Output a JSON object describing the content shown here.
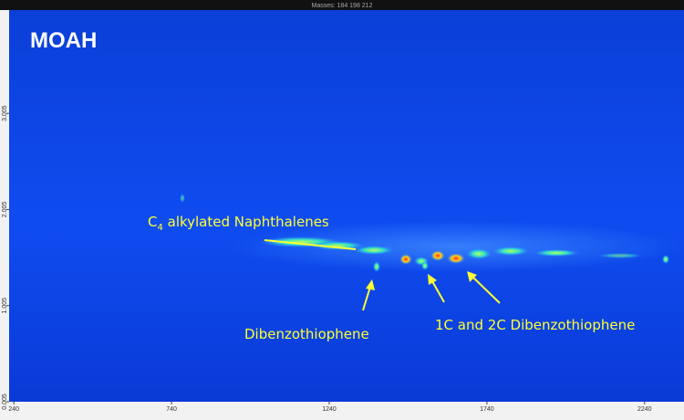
{
  "chart_data": {
    "type": "image",
    "title": "Masses: 184 198 212",
    "label": "MOAH",
    "xlim": [
      225,
      2365
    ],
    "ylim": [
      0.005,
      4.08
    ],
    "xticks": [
      240,
      740,
      1240,
      1740,
      2240
    ],
    "yticks": [
      0.005,
      1.005,
      2.005,
      3.005
    ],
    "annotations": [
      {
        "parts": [
          "C",
          "4",
          " alkylated  Naphthalenes"
        ]
      },
      {
        "text": "Dibenzothiophene"
      },
      {
        "text": "1C and 2C Dibenzothiophene"
      }
    ]
  }
}
